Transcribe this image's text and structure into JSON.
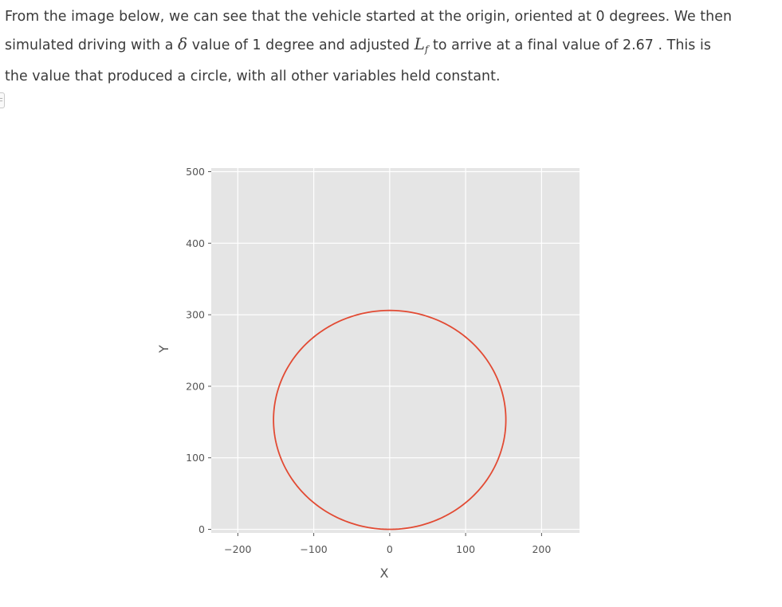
{
  "text": {
    "line1": "From the image below, we can see that the vehicle started at the origin, oriented at 0 degrees. We then",
    "line2_a": "simulated driving with a ",
    "delta_symbol": "δ",
    "line2_b": " value of 1 degree and adjusted ",
    "lf_symbol": "L",
    "lf_sub": "f",
    "line2_c": " to arrive at a final value of 2.67 . This is",
    "line3": "the value that produced a circle, with all other variables held constant."
  },
  "collapse_button": {
    "label": "⊂"
  },
  "colors": {
    "plot_background": "#e5e5e5",
    "grid": "#ffffff",
    "trajectory": "#e24a33",
    "tick_text": "#555555"
  },
  "chart_data": {
    "type": "line",
    "title": "",
    "xlabel": "X",
    "ylabel": "Y",
    "xlim": [
      -235,
      250
    ],
    "ylim": [
      -5,
      505
    ],
    "xticks": [
      -200,
      -100,
      0,
      100,
      200
    ],
    "xtick_labels": [
      "−200",
      "−100",
      "0",
      "100",
      "200"
    ],
    "yticks": [
      0,
      100,
      200,
      300,
      400,
      500
    ],
    "ytick_labels": [
      "0",
      "100",
      "200",
      "300",
      "400",
      "500"
    ],
    "grid": true,
    "series": [
      {
        "shape": "circle",
        "center": [
          0,
          153
        ],
        "radius": 153,
        "samples": 240
      }
    ]
  }
}
